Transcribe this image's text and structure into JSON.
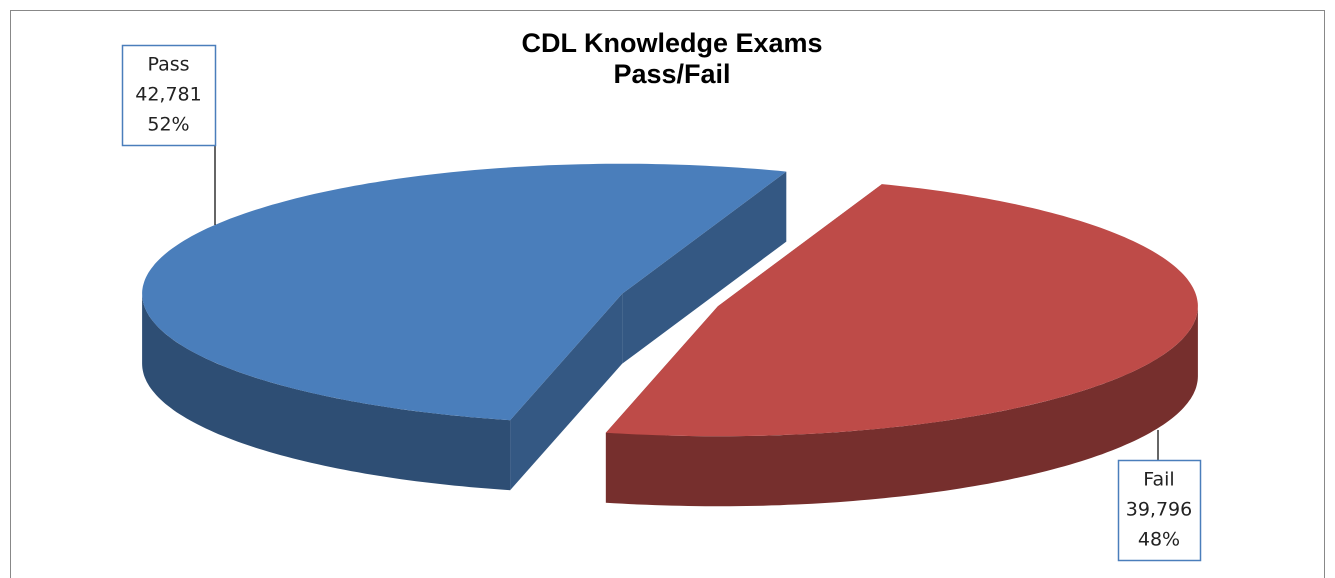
{
  "chart_data": {
    "type": "pie",
    "title": "CDL Knowledge Exams",
    "subtitle": "Pass/Fail",
    "categories": [
      "Pass",
      "Fail"
    ],
    "values": [
      42781,
      39796
    ],
    "value_labels": [
      "42,781",
      "39,796"
    ],
    "percent_labels": [
      "52%",
      "48%"
    ],
    "colors": [
      "#4a7ebb",
      "#be4b48"
    ]
  }
}
